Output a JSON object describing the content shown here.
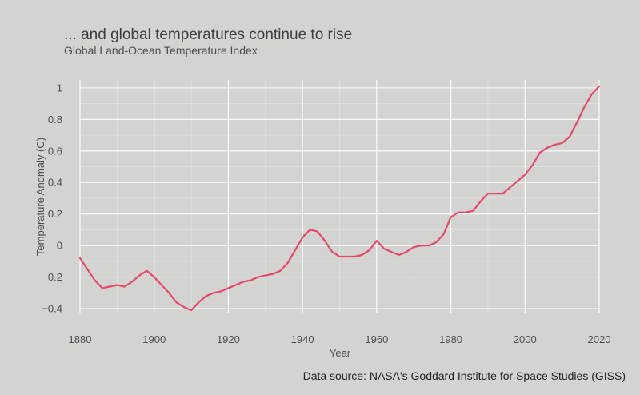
{
  "chart_data": {
    "type": "line",
    "title": "... and global temperatures continue to rise",
    "subtitle": "Global Land-Ocean Temperature Index",
    "xlabel": "Year",
    "ylabel": "Temperature Anomaly (C)",
    "caption": "Data source: NASA's Goddard Institute for Space Studies (GISS)",
    "xlim": [
      1880,
      2020
    ],
    "ylim": [
      -0.43,
      1.05
    ],
    "xticks": [
      1880,
      1900,
      1920,
      1940,
      1960,
      1980,
      2000,
      2020
    ],
    "yticks": [
      -0.4,
      -0.2,
      0,
      0.2,
      0.4,
      0.6,
      0.8,
      1
    ],
    "ytick_labels": [
      "−0.4",
      "−0.2",
      "0",
      "0.2",
      "0.4",
      "0.6",
      "0.8",
      "1"
    ],
    "grid": true,
    "line_color": "#e8476a",
    "series": [
      {
        "x": [
          1880,
          1882,
          1884,
          1886,
          1888,
          1890,
          1892,
          1894,
          1896,
          1898,
          1900,
          1902,
          1904,
          1906,
          1908,
          1910,
          1912,
          1914,
          1916,
          1918,
          1920,
          1922,
          1924,
          1926,
          1928,
          1930,
          1932,
          1934,
          1936,
          1938,
          1940,
          1942,
          1944,
          1946,
          1948,
          1950,
          1952,
          1954,
          1956,
          1958,
          1960,
          1962,
          1964,
          1966,
          1968,
          1970,
          1972,
          1974,
          1976,
          1978,
          1980,
          1982,
          1984,
          1986,
          1988,
          1990,
          1992,
          1994,
          1996,
          1998,
          2000,
          2002,
          2004,
          2006,
          2008,
          2010,
          2012,
          2014,
          2016,
          2018,
          2020
        ],
        "y": [
          -0.08,
          -0.15,
          -0.22,
          -0.27,
          -0.26,
          -0.25,
          -0.26,
          -0.23,
          -0.19,
          -0.16,
          -0.2,
          -0.25,
          -0.3,
          -0.36,
          -0.39,
          -0.41,
          -0.36,
          -0.32,
          -0.3,
          -0.29,
          -0.27,
          -0.25,
          -0.23,
          -0.22,
          -0.2,
          -0.19,
          -0.18,
          -0.16,
          -0.11,
          -0.03,
          0.05,
          0.1,
          0.09,
          0.03,
          -0.04,
          -0.07,
          -0.07,
          -0.07,
          -0.06,
          -0.03,
          0.03,
          -0.02,
          -0.04,
          -0.06,
          -0.04,
          -0.01,
          0.0,
          0.0,
          0.02,
          0.07,
          0.18,
          0.21,
          0.21,
          0.22,
          0.28,
          0.33,
          0.33,
          0.33,
          0.37,
          0.41,
          0.45,
          0.51,
          0.59,
          0.62,
          0.64,
          0.65,
          0.69,
          0.78,
          0.88,
          0.96,
          1.01
        ]
      }
    ]
  }
}
